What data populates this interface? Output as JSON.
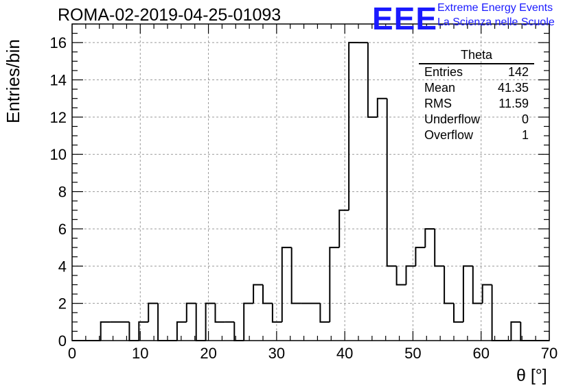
{
  "title": "ROMA-02-2019-04-25-01093",
  "logo": {
    "mark": "EEE",
    "line1": "Extreme Energy Events",
    "line2": "La Scienza nelle Scuole",
    "color": "#1a1aff"
  },
  "stats_box": {
    "title": "Theta",
    "rows": [
      {
        "label": "Entries",
        "value": "142"
      },
      {
        "label": "Mean",
        "value": "41.35"
      },
      {
        "label": "RMS",
        "value": "11.59"
      },
      {
        "label": "Underflow",
        "value": "0"
      },
      {
        "label": "Overflow",
        "value": "1"
      }
    ]
  },
  "chart_data": {
    "type": "bar",
    "style": "step-histogram",
    "title": "ROMA-02-2019-04-25-01093",
    "xlabel": "θ [°]",
    "ylabel": "Entries/bin",
    "xlim": [
      0,
      70
    ],
    "ylim": [
      0,
      17
    ],
    "bin_width": 1.4,
    "bin_start": 0,
    "values": [
      0,
      0,
      0,
      1,
      1,
      1,
      0,
      1,
      2,
      0,
      0,
      1,
      2,
      0,
      2,
      1,
      1,
      0,
      2,
      3,
      2,
      1,
      5,
      2,
      2,
      2,
      1,
      5,
      7,
      16,
      16,
      12,
      13,
      4,
      3,
      4,
      5,
      6,
      4,
      2,
      1,
      4,
      2,
      3,
      0,
      0,
      1,
      0,
      0,
      0
    ],
    "x_ticks": [
      0,
      10,
      20,
      30,
      40,
      50,
      60,
      70
    ],
    "y_ticks": [
      0,
      2,
      4,
      6,
      8,
      10,
      12,
      14,
      16
    ],
    "grid": true,
    "line_color": "#000000"
  }
}
